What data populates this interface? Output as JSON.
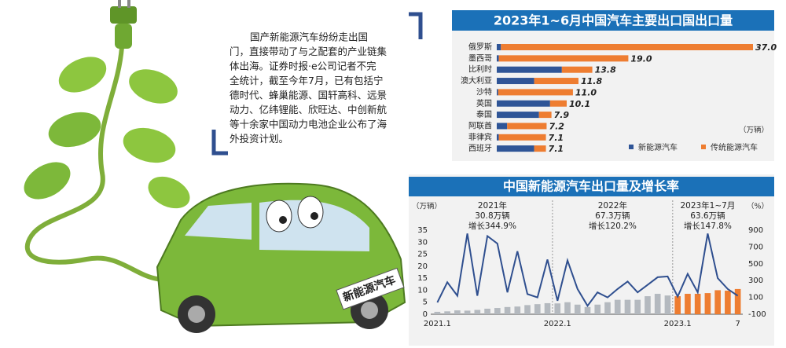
{
  "article": {
    "lines": [
      "国产新能源汽车纷纷走出国",
      "门，直接带动了与之配套的产业链集",
      "体出海。证券时报·e公司记者不完",
      "全统计，截至今年7月，已有包括宁",
      "德时代、蜂巢能源、国轩高科、远景",
      "动力、亿纬锂能、欣旺达、中创新航",
      "等十余家中国动力电池企业公布了海",
      "外投资计划。"
    ]
  },
  "illustration": {
    "plate": "新能源汽车"
  },
  "chart_data": [
    {
      "type": "bar",
      "orientation": "horizontal",
      "stacked": true,
      "title": "2023年1~6月中国汽车主要出口国出口量",
      "unit": "（万辆）",
      "categories": [
        "俄罗斯",
        "墨西哥",
        "比利时",
        "澳大利亚",
        "沙特",
        "英国",
        "泰国",
        "阿联酋",
        "菲律宾",
        "西班牙"
      ],
      "series": [
        {
          "name": "新能源汽车",
          "color": "#2f5597",
          "values": [
            0.6,
            0.3,
            9.4,
            5.4,
            0.2,
            7.7,
            6.1,
            1.5,
            0.3,
            5.4
          ]
        },
        {
          "name": "传统能源汽车",
          "color": "#ee7d31",
          "values": [
            36.4,
            18.7,
            4.4,
            6.4,
            10.8,
            2.4,
            1.8,
            5.7,
            6.8,
            1.7
          ]
        }
      ],
      "totals": [
        37,
        19,
        13.8,
        11.8,
        11,
        10.1,
        7.9,
        7.2,
        7.1,
        7.1
      ],
      "total_labels": [
        "37.0",
        "19.0",
        "13.8",
        "11.8",
        "11.0",
        "10.1",
        "7.9",
        "7.2",
        "7.1",
        "7.1"
      ]
    },
    {
      "type": "bar-line",
      "title": "中国新能源汽车出口量及增长率",
      "y_unit": "（万辆）",
      "y2_unit": "（%）",
      "categories": [
        "2021.1",
        null,
        null,
        null,
        null,
        null,
        null,
        null,
        null,
        null,
        null,
        null,
        "2022.1",
        null,
        null,
        null,
        null,
        null,
        null,
        null,
        null,
        null,
        null,
        null,
        "2023.1",
        null,
        null,
        null,
        null,
        null,
        "7"
      ],
      "annotations": [
        "2021年\n30.8万辆\n增长344.9%",
        "2022年\n67.3万辆\n增长120.2%",
        "2023年1~7月\n63.6万辆\n增长147.8%"
      ],
      "ylim": [
        0,
        35
      ],
      "yticks": [
        0,
        5,
        10,
        15,
        20,
        25,
        30,
        35
      ],
      "y2lim": [
        -100,
        900
      ],
      "y2ticks": [
        -100,
        100,
        300,
        500,
        700,
        900
      ],
      "series": [
        {
          "kind": "bar",
          "color": "#b4b9bf",
          "values": [
            1.0,
            1.2,
            1.6,
            1.5,
            1.8,
            2.3,
            2.6,
            3.0,
            3.2,
            3.8,
            4.2,
            4.6,
            4.5,
            5.0,
            4.0,
            3.0,
            4.0,
            5.0,
            6.0,
            6.0,
            6.0,
            7.5,
            8.5,
            7.8,
            null,
            null,
            null,
            null,
            null,
            null,
            null
          ]
        },
        {
          "kind": "bar",
          "color": "#ee7d31",
          "values": [
            null,
            null,
            null,
            null,
            null,
            null,
            null,
            null,
            null,
            null,
            null,
            null,
            null,
            null,
            null,
            null,
            null,
            null,
            null,
            null,
            null,
            null,
            null,
            null,
            7.5,
            8.5,
            8.5,
            8.8,
            10.0,
            9.8,
            10.5
          ]
        },
        {
          "kind": "line",
          "axis": "y2",
          "color": "#2f4f8f",
          "values": [
            40,
            280,
            120,
            860,
            120,
            830,
            740,
            160,
            650,
            140,
            100,
            550,
            60,
            540,
            200,
            0,
            160,
            100,
            200,
            290,
            160,
            250,
            340,
            350,
            110,
            380,
            160,
            860,
            330,
            200,
            120
          ]
        }
      ]
    }
  ]
}
